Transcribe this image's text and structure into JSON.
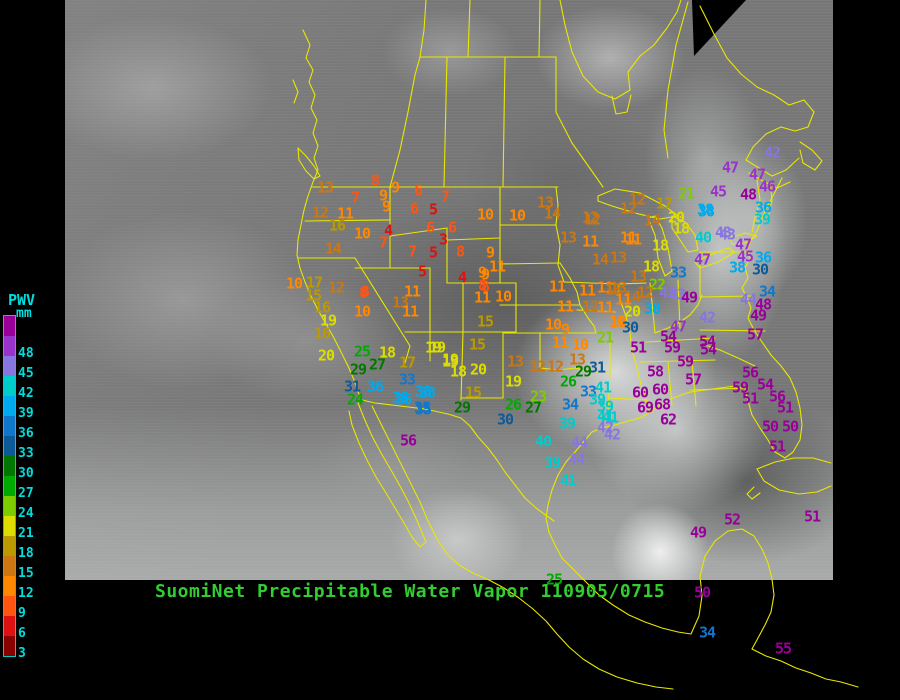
{
  "title": {
    "text": "SuomiNet Precipitable Water Vapor 110905/0715",
    "color": "#33cc33"
  },
  "legend": {
    "title": "PWV",
    "unit": "mm",
    "labels": [
      "48",
      "45",
      "42",
      "39",
      "36",
      "33",
      "30",
      "27",
      "24",
      "21",
      "18",
      "15",
      "12",
      "9",
      "6",
      "3"
    ],
    "block_colors": [
      "#990099",
      "#9933cc",
      "#8876e0",
      "#00cccc",
      "#00aaee",
      "#1177cc",
      "#0d5a99",
      "#007700",
      "#00aa00",
      "#7ccc00",
      "#dddd00",
      "#bb9900",
      "#cc7711",
      "#ff8800",
      "#ff5511",
      "#dd1111",
      "#880000"
    ],
    "label_color": "#00dddd",
    "border_color": "#00cccc"
  },
  "map": {
    "outline_color": "#e8e800",
    "background": "#000000"
  },
  "satellite": {
    "base_gray": "#777777",
    "frame": "#000000"
  },
  "stations": {
    "units": "mm",
    "color_bins_min": [
      48,
      45,
      42,
      39,
      36,
      33,
      30,
      27,
      24,
      21,
      18,
      15,
      12,
      9,
      6,
      3,
      0
    ],
    "points": [
      [
        325,
        188,
        13
      ],
      [
        375,
        181,
        8
      ],
      [
        395,
        188,
        9
      ],
      [
        355,
        198,
        7
      ],
      [
        383,
        196,
        9
      ],
      [
        386,
        207,
        9
      ],
      [
        418,
        191,
        6
      ],
      [
        445,
        197,
        7
      ],
      [
        414,
        209,
        6
      ],
      [
        433,
        210,
        5
      ],
      [
        320,
        213,
        12
      ],
      [
        345,
        214,
        11
      ],
      [
        337,
        226,
        16
      ],
      [
        362,
        234,
        10
      ],
      [
        388,
        231,
        4
      ],
      [
        383,
        243,
        7
      ],
      [
        333,
        249,
        14
      ],
      [
        430,
        228,
        6
      ],
      [
        452,
        228,
        6
      ],
      [
        443,
        240,
        3
      ],
      [
        460,
        252,
        8
      ],
      [
        433,
        253,
        5
      ],
      [
        412,
        252,
        7
      ],
      [
        422,
        272,
        5
      ],
      [
        462,
        278,
        4
      ],
      [
        482,
        273,
        9
      ],
      [
        482,
        286,
        8
      ],
      [
        365,
        292,
        8
      ],
      [
        490,
        253,
        9
      ],
      [
        497,
        267,
        11
      ],
      [
        485,
        275,
        9
      ],
      [
        485,
        287,
        8
      ],
      [
        482,
        298,
        11
      ],
      [
        503,
        297,
        10
      ],
      [
        485,
        322,
        15
      ],
      [
        485,
        215,
        10
      ],
      [
        517,
        216,
        10
      ],
      [
        545,
        203,
        13
      ],
      [
        552,
        214,
        14
      ],
      [
        592,
        220,
        12
      ],
      [
        568,
        238,
        13
      ],
      [
        590,
        242,
        11
      ],
      [
        628,
        238,
        11
      ],
      [
        600,
        260,
        14
      ],
      [
        618,
        258,
        13
      ],
      [
        557,
        287,
        11
      ],
      [
        587,
        291,
        11
      ],
      [
        605,
        288,
        11
      ],
      [
        618,
        288,
        13
      ],
      [
        565,
        307,
        11
      ],
      [
        590,
        307,
        12
      ],
      [
        605,
        308,
        11
      ],
      [
        553,
        325,
        10
      ],
      [
        565,
        330,
        9
      ],
      [
        618,
        323,
        10
      ],
      [
        637,
        200,
        12
      ],
      [
        628,
        209,
        12
      ],
      [
        664,
        204,
        17
      ],
      [
        686,
        194,
        21
      ],
      [
        705,
        210,
        38
      ],
      [
        590,
        218,
        12
      ],
      [
        652,
        221,
        14
      ],
      [
        676,
        218,
        20
      ],
      [
        681,
        229,
        18
      ],
      [
        703,
        238,
        40
      ],
      [
        727,
        235,
        43
      ],
      [
        633,
        240,
        11
      ],
      [
        660,
        246,
        18
      ],
      [
        651,
        267,
        18
      ],
      [
        657,
        285,
        22
      ],
      [
        702,
        260,
        47
      ],
      [
        678,
        273,
        33
      ],
      [
        638,
        277,
        13
      ],
      [
        632,
        297,
        14
      ],
      [
        623,
        300,
        11
      ],
      [
        677,
        295,
        43
      ],
      [
        689,
        298,
        49
      ],
      [
        613,
        290,
        13
      ],
      [
        645,
        293,
        12
      ],
      [
        652,
        309,
        38
      ],
      [
        632,
        312,
        20
      ],
      [
        617,
        322,
        10
      ],
      [
        630,
        328,
        30
      ],
      [
        605,
        338,
        21
      ],
      [
        772,
        153,
        42
      ],
      [
        730,
        168,
        47
      ],
      [
        757,
        175,
        47
      ],
      [
        767,
        187,
        46
      ],
      [
        718,
        192,
        45
      ],
      [
        748,
        195,
        48
      ],
      [
        706,
        212,
        38
      ],
      [
        763,
        208,
        36
      ],
      [
        762,
        220,
        39
      ],
      [
        723,
        233,
        43
      ],
      [
        743,
        245,
        47
      ],
      [
        745,
        257,
        45
      ],
      [
        763,
        258,
        36
      ],
      [
        737,
        268,
        38
      ],
      [
        760,
        270,
        30
      ],
      [
        767,
        292,
        34
      ],
      [
        748,
        300,
        44
      ],
      [
        763,
        305,
        48
      ],
      [
        758,
        316,
        49
      ],
      [
        755,
        335,
        57
      ],
      [
        707,
        318,
        42
      ],
      [
        678,
        327,
        47
      ],
      [
        667,
        293,
        43
      ],
      [
        638,
        348,
        51
      ],
      [
        668,
        337,
        54
      ],
      [
        672,
        348,
        59
      ],
      [
        707,
        342,
        54
      ],
      [
        708,
        350,
        54
      ],
      [
        685,
        362,
        59
      ],
      [
        655,
        372,
        58
      ],
      [
        693,
        380,
        57
      ],
      [
        750,
        373,
        56
      ],
      [
        740,
        388,
        59
      ],
      [
        765,
        385,
        54
      ],
      [
        750,
        399,
        51
      ],
      [
        777,
        397,
        56
      ],
      [
        640,
        393,
        60
      ],
      [
        660,
        390,
        60
      ],
      [
        645,
        408,
        69
      ],
      [
        662,
        405,
        68
      ],
      [
        668,
        420,
        62
      ],
      [
        785,
        408,
        51
      ],
      [
        770,
        427,
        50
      ],
      [
        790,
        427,
        50
      ],
      [
        777,
        447,
        51
      ],
      [
        812,
        517,
        51
      ],
      [
        732,
        520,
        52
      ],
      [
        698,
        533,
        49
      ],
      [
        597,
        368,
        31
      ],
      [
        603,
        388,
        41
      ],
      [
        605,
        407,
        39
      ],
      [
        610,
        418,
        41
      ],
      [
        612,
        435,
        42
      ],
      [
        583,
        372,
        29
      ],
      [
        568,
        382,
        26
      ],
      [
        588,
        392,
        33
      ],
      [
        570,
        405,
        34
      ],
      [
        597,
        400,
        39
      ],
      [
        605,
        417,
        41
      ],
      [
        605,
        428,
        42
      ],
      [
        567,
        424,
        39
      ],
      [
        543,
        442,
        40
      ],
      [
        579,
        443,
        44
      ],
      [
        576,
        460,
        44
      ],
      [
        552,
        463,
        39
      ],
      [
        568,
        481,
        41
      ],
      [
        505,
        420,
        30
      ],
      [
        538,
        397,
        23
      ],
      [
        513,
        405,
        26
      ],
      [
        533,
        408,
        27
      ],
      [
        513,
        382,
        19
      ],
      [
        515,
        362,
        13
      ],
      [
        537,
        367,
        12
      ],
      [
        555,
        367,
        12
      ],
      [
        560,
        343,
        11
      ],
      [
        580,
        345,
        10
      ],
      [
        577,
        360,
        13
      ],
      [
        437,
        348,
        19
      ],
      [
        477,
        345,
        15
      ],
      [
        450,
        362,
        19
      ],
      [
        458,
        372,
        18
      ],
      [
        478,
        370,
        20
      ],
      [
        473,
        393,
        15
      ],
      [
        462,
        408,
        29
      ],
      [
        408,
        441,
        56
      ],
      [
        407,
        363,
        17
      ],
      [
        407,
        380,
        33
      ],
      [
        400,
        398,
        36
      ],
      [
        423,
        392,
        38
      ],
      [
        422,
        408,
        35
      ],
      [
        294,
        284,
        10
      ],
      [
        314,
        283,
        17
      ],
      [
        336,
        288,
        12
      ],
      [
        313,
        296,
        15
      ],
      [
        322,
        308,
        16
      ],
      [
        328,
        321,
        19
      ],
      [
        322,
        334,
        16
      ],
      [
        363,
        293,
        8
      ],
      [
        400,
        303,
        13
      ],
      [
        412,
        292,
        11
      ],
      [
        410,
        312,
        11
      ],
      [
        362,
        312,
        10
      ],
      [
        433,
        348,
        19
      ],
      [
        450,
        360,
        19
      ],
      [
        362,
        352,
        25
      ],
      [
        326,
        356,
        20
      ],
      [
        387,
        353,
        18
      ],
      [
        358,
        370,
        29
      ],
      [
        377,
        365,
        27
      ],
      [
        375,
        387,
        36
      ],
      [
        352,
        387,
        31
      ],
      [
        355,
        400,
        24
      ],
      [
        403,
        400,
        36
      ],
      [
        427,
        393,
        38
      ],
      [
        423,
        410,
        35
      ],
      [
        702,
        593,
        50
      ],
      [
        707,
        633,
        34
      ],
      [
        783,
        649,
        55
      ],
      [
        554,
        580,
        25
      ]
    ]
  }
}
